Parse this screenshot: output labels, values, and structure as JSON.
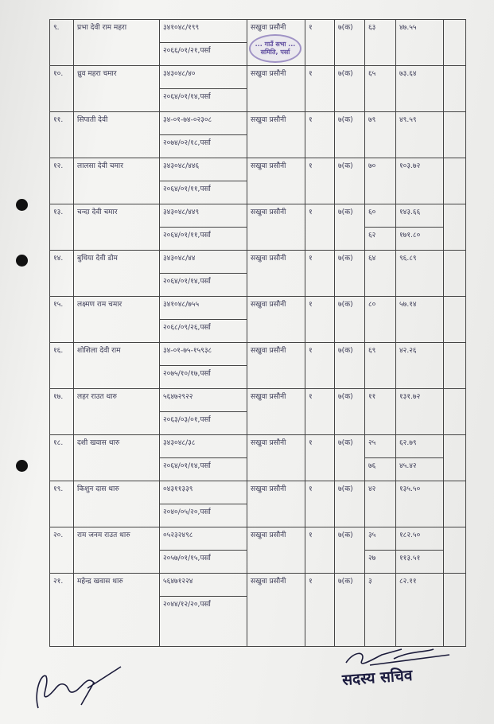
{
  "stamp_text": "... गाउँ सभा ... समिति, पर्सा",
  "rows": [
    {
      "sn": "९.",
      "name": "प्रभा देवी राम महरा",
      "id": "३४१०४८/१९९",
      "date": "२०६६/०१/२१,पर्सा",
      "place": "सखुवा प्रसौनी",
      "qty": "१",
      "code": "७(क)",
      "plots": [
        {
          "no": "६३",
          "area": "४७.५५"
        }
      ]
    },
    {
      "sn": "१०.",
      "name": "ध्रुव महरा चमार",
      "id": "३४३०४८/४०",
      "date": "२०६४/०१/१४,पर्सा",
      "place": "सखुवा प्रसौनी",
      "qty": "१",
      "code": "७(क)",
      "plots": [
        {
          "no": "६५",
          "area": "७३.६४"
        }
      ]
    },
    {
      "sn": "११.",
      "name": "सिपाती देवी",
      "id": "३४-०१-७४-०२३०८",
      "date": "२०७४/०२/१८,पर्सा",
      "place": "सखुवा प्रसौनी",
      "qty": "१",
      "code": "७(क)",
      "plots": [
        {
          "no": "७९",
          "area": "४९.५९"
        }
      ]
    },
    {
      "sn": "१२.",
      "name": "लालसा देवी चमार",
      "id": "३४३०४८/४४६",
      "date": "२०६४/०१/११,पर्सा",
      "place": "सखुवा प्रसौनी",
      "qty": "१",
      "code": "७(क)",
      "plots": [
        {
          "no": "७०",
          "area": "१०३.७२"
        }
      ]
    },
    {
      "sn": "१३.",
      "name": "चन्दा देवी चमार",
      "id": "३४३०४८/४४९",
      "date": "२०६४/०१/११,पर्सा",
      "place": "सखुवा प्रसौनी",
      "qty": "१",
      "code": "७(क)",
      "plots": [
        {
          "no": "६०",
          "area": "१४३.६६"
        },
        {
          "no": "६२",
          "area": "१७१.८०"
        }
      ]
    },
    {
      "sn": "१४.",
      "name": "बुधिया देवी डोम",
      "id": "३४३०४८/४४",
      "date": "२०६४/०१/१४,पर्सा",
      "place": "सखुवा प्रसौनी",
      "qty": "१",
      "code": "७(क)",
      "plots": [
        {
          "no": "६४",
          "area": "९६.८९"
        }
      ]
    },
    {
      "sn": "१५.",
      "name": "लक्ष्मण राम चमार",
      "id": "३४१०४८/७५५",
      "date": "२०६८/०९/२६,पर्सा",
      "place": "सखुवा प्रसौनी",
      "qty": "१",
      "code": "७(क)",
      "plots": [
        {
          "no": "८०",
          "area": "५७.१४"
        }
      ]
    },
    {
      "sn": "१६.",
      "name": "शोशिला देवी राम",
      "id": "३४-०१-७५-१५९३८",
      "date": "२०७५/१०/१७,पर्सा",
      "place": "सखुवा प्रसौनी",
      "qty": "१",
      "code": "७(क)",
      "plots": [
        {
          "no": "६९",
          "area": "४२.२६"
        }
      ]
    },
    {
      "sn": "१७.",
      "name": "लहर राउत थारु",
      "id": "५६४७२९२२",
      "date": "२०६३/०३/०१,पर्सा",
      "place": "सखुवा प्रसौनी",
      "qty": "१",
      "code": "७(क)",
      "plots": [
        {
          "no": "११",
          "area": "१३१.७२"
        }
      ]
    },
    {
      "sn": "१८.",
      "name": "दशी खवास थारु",
      "id": "३४३०४८/३८",
      "date": "२०६४/०१/१४,पर्सा",
      "place": "सखुवा प्रसौनी",
      "qty": "१",
      "code": "७(क)",
      "plots": [
        {
          "no": "२५",
          "area": "६२.७९"
        },
        {
          "no": "७६",
          "area": "४५.४२"
        }
      ]
    },
    {
      "sn": "१९.",
      "name": "किशुन दास थारु",
      "id": "०४३११३३९",
      "date": "२०४०/०५/२०,पर्सा",
      "place": "सखुवा प्रसौनी",
      "qty": "१",
      "code": "७(क)",
      "plots": [
        {
          "no": "४२",
          "area": "१३५.५०"
        }
      ]
    },
    {
      "sn": "२०.",
      "name": "राम जनम राउत थारु",
      "id": "०५२३२४९८",
      "date": "२०५७/०१/१५,पर्सा",
      "place": "सखुवा प्रसौनी",
      "qty": "१",
      "code": "७(क)",
      "plots": [
        {
          "no": "३५",
          "area": "१८२.५०"
        },
        {
          "no": "२७",
          "area": "११३.५१"
        }
      ]
    },
    {
      "sn": "२१.",
      "name": "महेन्द्र खवास थारु",
      "id": "५६४७१२२४",
      "date": "२०४४/१२/२०,पर्सा",
      "place": "सखुवा प्रसौनी",
      "qty": "१",
      "code": "७(क)",
      "plots": [
        {
          "no": "३",
          "area": "८२.११"
        }
      ]
    }
  ],
  "footer": {
    "secretary_label": "सदस्य सचिव"
  }
}
